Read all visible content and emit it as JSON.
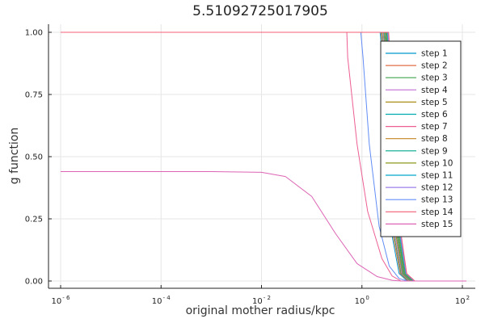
{
  "chart_data": {
    "type": "line",
    "title": "5.51092725017905",
    "xlabel": "original mother radius/kpc",
    "ylabel": "g function",
    "xscale": "log10",
    "xlim": [
      1e-06,
      120
    ],
    "ylim": [
      0.0,
      1.0
    ],
    "x_ticks": [
      {
        "base": "10",
        "exp": "- 6",
        "value": 1e-06
      },
      {
        "base": "10",
        "exp": "- 4",
        "value": 0.0001
      },
      {
        "base": "10",
        "exp": "- 2",
        "value": 0.01
      },
      {
        "base": "10",
        "exp": "0",
        "value": 1
      },
      {
        "base": "10",
        "exp": "2",
        "value": 100
      }
    ],
    "y_ticks": [
      "0.00",
      "0.25",
      "0.50",
      "0.75",
      "1.00"
    ],
    "grid": true,
    "legend_position": "top-right",
    "series": [
      {
        "name": "step 1",
        "color": "#0099cc",
        "points": [
          [
            1e-06,
            1.0
          ],
          [
            2.3,
            1.0
          ],
          [
            2.5,
            0.92
          ],
          [
            3.0,
            0.55
          ],
          [
            4.0,
            0.18
          ],
          [
            5.5,
            0.03
          ],
          [
            8.0,
            0.0
          ],
          [
            120,
            0.0
          ]
        ]
      },
      {
        "name": "step 2",
        "color": "#e26f46",
        "points": [
          [
            1e-06,
            1.0
          ],
          [
            2.4,
            1.0
          ],
          [
            2.6,
            0.92
          ],
          [
            3.1,
            0.55
          ],
          [
            4.2,
            0.18
          ],
          [
            5.8,
            0.03
          ],
          [
            8.3,
            0.0
          ],
          [
            120,
            0.0
          ]
        ]
      },
      {
        "name": "step 3",
        "color": "#3da44d",
        "points": [
          [
            1e-06,
            1.0
          ],
          [
            2.5,
            1.0
          ],
          [
            2.7,
            0.92
          ],
          [
            3.2,
            0.55
          ],
          [
            4.4,
            0.18
          ],
          [
            6.0,
            0.03
          ],
          [
            8.6,
            0.0
          ],
          [
            120,
            0.0
          ]
        ]
      },
      {
        "name": "step 4",
        "color": "#c271d2",
        "points": [
          [
            1e-06,
            1.0
          ],
          [
            2.6,
            1.0
          ],
          [
            2.8,
            0.92
          ],
          [
            3.3,
            0.55
          ],
          [
            4.6,
            0.18
          ],
          [
            6.2,
            0.03
          ],
          [
            8.9,
            0.0
          ],
          [
            120,
            0.0
          ]
        ]
      },
      {
        "name": "step 5",
        "color": "#ac8d18",
        "points": [
          [
            1e-06,
            1.0
          ],
          [
            2.7,
            1.0
          ],
          [
            2.9,
            0.92
          ],
          [
            3.4,
            0.55
          ],
          [
            4.8,
            0.18
          ],
          [
            6.4,
            0.03
          ],
          [
            9.2,
            0.0
          ],
          [
            120,
            0.0
          ]
        ]
      },
      {
        "name": "step 6",
        "color": "#00a9ad",
        "points": [
          [
            1e-06,
            1.0
          ],
          [
            2.8,
            1.0
          ],
          [
            3.0,
            0.92
          ],
          [
            3.6,
            0.55
          ],
          [
            5.0,
            0.18
          ],
          [
            6.6,
            0.03
          ],
          [
            9.5,
            0.0
          ],
          [
            120,
            0.0
          ]
        ]
      },
      {
        "name": "step 7",
        "color": "#ed5e93",
        "points": [
          [
            1e-06,
            1.0
          ],
          [
            0.5,
            1.0
          ],
          [
            0.52,
            0.9
          ],
          [
            0.8,
            0.55
          ],
          [
            1.3,
            0.28
          ],
          [
            2.5,
            0.09
          ],
          [
            4.0,
            0.02
          ],
          [
            6.0,
            0.0
          ],
          [
            120,
            0.0
          ]
        ]
      },
      {
        "name": "step 8",
        "color": "#c68225",
        "points": [
          [
            1e-06,
            1.0
          ],
          [
            2.9,
            1.0
          ],
          [
            3.1,
            0.92
          ],
          [
            3.7,
            0.55
          ],
          [
            5.1,
            0.18
          ],
          [
            6.8,
            0.03
          ],
          [
            9.8,
            0.0
          ],
          [
            120,
            0.0
          ]
        ]
      },
      {
        "name": "step 9",
        "color": "#00a98d",
        "points": [
          [
            1e-06,
            1.0
          ],
          [
            3.0,
            1.0
          ],
          [
            3.2,
            0.92
          ],
          [
            3.8,
            0.55
          ],
          [
            5.3,
            0.18
          ],
          [
            7.0,
            0.03
          ],
          [
            10.1,
            0.0
          ],
          [
            120,
            0.0
          ]
        ]
      },
      {
        "name": "step 10",
        "color": "#8e971d",
        "points": [
          [
            1e-06,
            1.0
          ],
          [
            3.1,
            1.0
          ],
          [
            3.3,
            0.92
          ],
          [
            3.9,
            0.55
          ],
          [
            5.5,
            0.18
          ],
          [
            7.2,
            0.03
          ],
          [
            10.4,
            0.0
          ],
          [
            120,
            0.0
          ]
        ]
      },
      {
        "name": "step 11",
        "color": "#00a9cd",
        "points": [
          [
            1e-06,
            1.0
          ],
          [
            3.2,
            1.0
          ],
          [
            3.4,
            0.92
          ],
          [
            4.0,
            0.55
          ],
          [
            5.7,
            0.18
          ],
          [
            7.4,
            0.03
          ],
          [
            10.7,
            0.0
          ],
          [
            120,
            0.0
          ]
        ]
      },
      {
        "name": "step 12",
        "color": "#9b7fe8",
        "points": [
          [
            1e-06,
            1.0
          ],
          [
            3.3,
            1.0
          ],
          [
            3.5,
            0.92
          ],
          [
            4.2,
            0.55
          ],
          [
            5.9,
            0.18
          ],
          [
            7.6,
            0.03
          ],
          [
            11.0,
            0.0
          ],
          [
            120,
            0.0
          ]
        ]
      },
      {
        "name": "step 13",
        "color": "#618df6",
        "points": [
          [
            1e-06,
            1.0
          ],
          [
            0.95,
            1.0
          ],
          [
            1.05,
            0.9
          ],
          [
            1.4,
            0.55
          ],
          [
            2.2,
            0.22
          ],
          [
            3.5,
            0.06
          ],
          [
            5.5,
            0.01
          ],
          [
            8.0,
            0.0
          ],
          [
            120,
            0.0
          ]
        ]
      },
      {
        "name": "step 14",
        "color": "#f05f73",
        "points": [
          [
            1e-06,
            1.0
          ],
          [
            3.4,
            1.0
          ],
          [
            3.6,
            0.92
          ],
          [
            4.3,
            0.55
          ],
          [
            6.1,
            0.18
          ],
          [
            7.8,
            0.03
          ],
          [
            11.3,
            0.0
          ],
          [
            120,
            0.0
          ]
        ]
      },
      {
        "name": "step 15",
        "color": "#dd64b5",
        "points": [
          [
            1e-06,
            0.44
          ],
          [
            0.001,
            0.44
          ],
          [
            0.01,
            0.437
          ],
          [
            0.03,
            0.42
          ],
          [
            0.1,
            0.34
          ],
          [
            0.3,
            0.19
          ],
          [
            0.8,
            0.07
          ],
          [
            2.0,
            0.018
          ],
          [
            4.0,
            0.003
          ],
          [
            6.0,
            0.0
          ],
          [
            120,
            0.0
          ]
        ]
      }
    ]
  }
}
